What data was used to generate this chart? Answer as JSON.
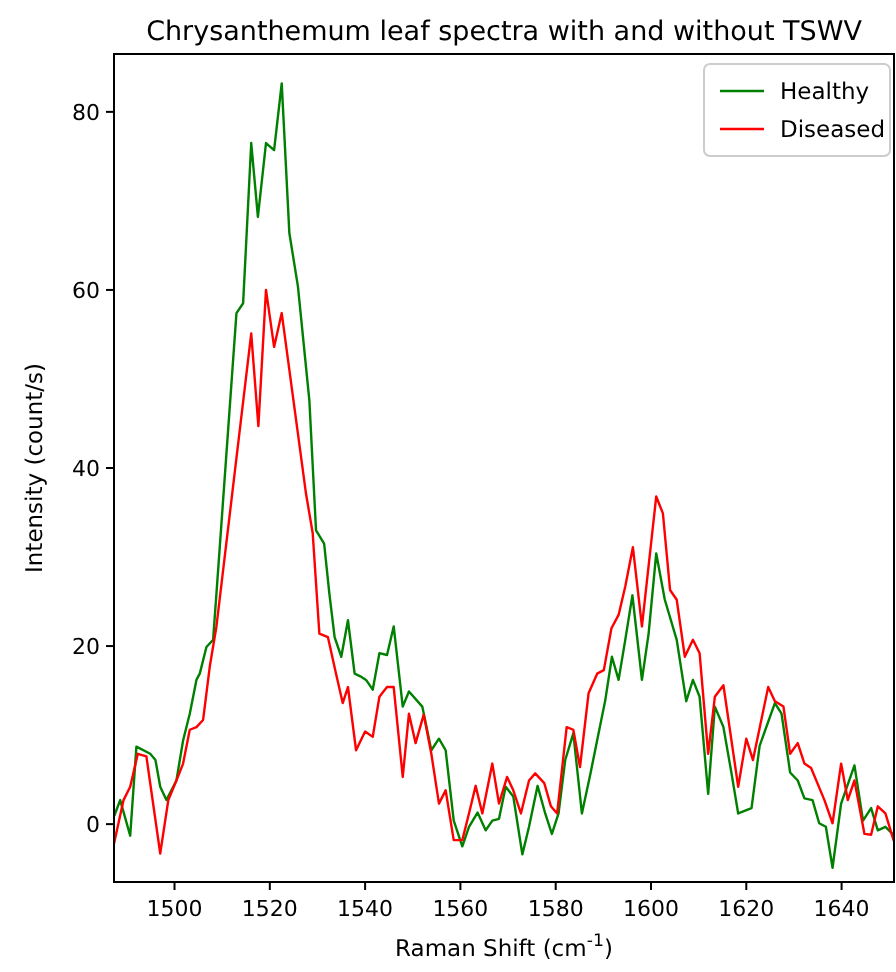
{
  "chart_data": {
    "type": "line",
    "title": "Chrysanthemum leaf spectra with and without TSWV",
    "xlabel": "Raman Shift (cm$^{-1}$)",
    "ylabel": "Intensity (count/s)",
    "xlim": [
      1487.3,
      1651.0
    ],
    "xticks": [
      1500,
      1520,
      1540,
      1560,
      1580,
      1600,
      1620,
      1640
    ],
    "ylim": [
      -6.5,
      86.5
    ],
    "yticks": [
      0,
      20,
      40,
      60,
      80
    ],
    "legend": "top right",
    "series": [
      {
        "name": "Healthy",
        "color": "#008000",
        "x": [
          1487.4,
          1488.6,
          1490.7,
          1492.0,
          1494.9,
          1496.0,
          1497.0,
          1498.3,
          1500.4,
          1501.8,
          1503.2,
          1504.6,
          1505.3,
          1506.7,
          1508.1,
          1508.8,
          1513.0,
          1514.4,
          1516.1,
          1517.5,
          1519.2,
          1520.9,
          1522.5,
          1524.1,
          1525.9,
          1528.3,
          1529.7,
          1531.4,
          1532.5,
          1533.6,
          1535.0,
          1536.4,
          1537.8,
          1539.0,
          1540.2,
          1541.6,
          1543.0,
          1544.6,
          1546.0,
          1547.9,
          1549.2,
          1552.0,
          1553.9,
          1555.5,
          1556.9,
          1558.6,
          1560.4,
          1561.8,
          1563.6,
          1565.3,
          1566.7,
          1568.1,
          1569.5,
          1571.1,
          1573.0,
          1574.4,
          1576.2,
          1577.8,
          1579.2,
          1580.6,
          1582.0,
          1583.7,
          1585.5,
          1587.3,
          1589.0,
          1590.4,
          1591.8,
          1593.2,
          1594.6,
          1596.1,
          1598.1,
          1599.5,
          1601.1,
          1602.9,
          1605.4,
          1607.4,
          1608.8,
          1610.2,
          1612.0,
          1613.4,
          1615.2,
          1616.9,
          1618.3,
          1621.1,
          1622.8,
          1626.0,
          1627.4,
          1629.2,
          1630.8,
          1632.2,
          1633.9,
          1635.3,
          1636.7,
          1638.1,
          1639.9,
          1642.7,
          1644.5,
          1646.2,
          1647.6,
          1649.2,
          1650.9
        ],
        "values": [
          1.0,
          2.7,
          -1.3,
          8.7,
          7.9,
          7.2,
          4.2,
          2.7,
          4.9,
          9.4,
          12.4,
          16.2,
          16.9,
          19.9,
          20.7,
          25.9,
          57.4,
          58.5,
          76.5,
          68.2,
          76.5,
          75.7,
          83.2,
          66.4,
          60.4,
          47.6,
          33.0,
          31.5,
          25.9,
          21.0,
          18.8,
          22.9,
          16.9,
          16.6,
          16.2,
          15.1,
          19.2,
          19.0,
          22.2,
          13.2,
          14.9,
          13.2,
          8.3,
          9.6,
          8.3,
          0.4,
          -2.5,
          -0.3,
          1.3,
          -0.7,
          0.4,
          0.6,
          4.2,
          3.1,
          -3.4,
          -0.3,
          4.3,
          1.2,
          -1.1,
          1.2,
          7.2,
          10.2,
          1.2,
          5.7,
          10.2,
          13.9,
          18.8,
          16.2,
          20.7,
          25.7,
          16.2,
          21.4,
          30.4,
          25.2,
          20.7,
          13.8,
          16.2,
          14.3,
          3.4,
          13.2,
          10.9,
          5.7,
          1.2,
          1.8,
          8.8,
          13.6,
          12.4,
          5.8,
          4.9,
          2.9,
          2.7,
          0.1,
          -0.3,
          -4.9,
          2.3,
          6.6,
          0.4,
          1.8,
          -0.7,
          -0.3,
          -1.2
        ]
      },
      {
        "name": "Diseased",
        "color": "#ff0000",
        "x": [
          1487.3,
          1489.3,
          1490.7,
          1492.3,
          1494.1,
          1497.0,
          1498.7,
          1500.4,
          1501.8,
          1503.2,
          1504.6,
          1506.0,
          1507.4,
          1508.8,
          1516.1,
          1517.6,
          1519.2,
          1520.9,
          1522.5,
          1527.6,
          1529.0,
          1530.4,
          1532.2,
          1533.9,
          1535.3,
          1536.4,
          1538.1,
          1540.0,
          1541.6,
          1543.0,
          1544.6,
          1546.0,
          1547.9,
          1549.2,
          1550.6,
          1552.3,
          1553.9,
          1555.5,
          1556.9,
          1558.6,
          1560.4,
          1561.8,
          1563.2,
          1564.6,
          1566.7,
          1568.1,
          1569.8,
          1571.1,
          1572.7,
          1574.4,
          1575.7,
          1577.6,
          1579.0,
          1580.3,
          1582.3,
          1583.7,
          1585.1,
          1586.9,
          1588.7,
          1590.1,
          1591.7,
          1593.2,
          1594.6,
          1596.2,
          1598.1,
          1601.1,
          1602.5,
          1604.0,
          1605.4,
          1607.1,
          1608.8,
          1610.2,
          1612.0,
          1613.4,
          1615.2,
          1618.3,
          1620.0,
          1621.4,
          1624.6,
          1626.0,
          1627.8,
          1629.2,
          1630.8,
          1632.2,
          1633.6,
          1636.4,
          1638.1,
          1639.9,
          1641.3,
          1642.7,
          1644.8,
          1646.2,
          1647.6,
          1649.2,
          1650.9
        ],
        "values": [
          -2.2,
          2.7,
          4.2,
          7.9,
          7.6,
          -3.3,
          2.7,
          4.9,
          6.8,
          10.6,
          10.9,
          11.7,
          17.7,
          22.2,
          55.1,
          44.7,
          60.0,
          53.6,
          57.4,
          37.1,
          32.7,
          21.4,
          21.0,
          16.9,
          13.6,
          15.4,
          8.3,
          10.4,
          9.8,
          14.3,
          15.4,
          15.4,
          5.3,
          12.4,
          9.1,
          12.3,
          7.9,
          2.3,
          3.8,
          -1.8,
          -1.8,
          1.2,
          4.3,
          1.2,
          6.8,
          2.3,
          5.3,
          3.8,
          1.2,
          4.9,
          5.7,
          4.6,
          2.0,
          1.2,
          10.9,
          10.6,
          6.4,
          14.7,
          16.9,
          17.3,
          22.0,
          23.5,
          26.7,
          31.1,
          22.2,
          36.8,
          34.9,
          26.3,
          25.2,
          18.8,
          20.7,
          19.2,
          7.9,
          14.3,
          15.6,
          4.2,
          9.6,
          7.2,
          15.4,
          13.8,
          13.2,
          7.9,
          9.1,
          6.8,
          6.3,
          2.7,
          0.1,
          6.8,
          2.7,
          4.9,
          -1.1,
          -1.2,
          2.0,
          1.2,
          -1.8
        ]
      }
    ]
  }
}
